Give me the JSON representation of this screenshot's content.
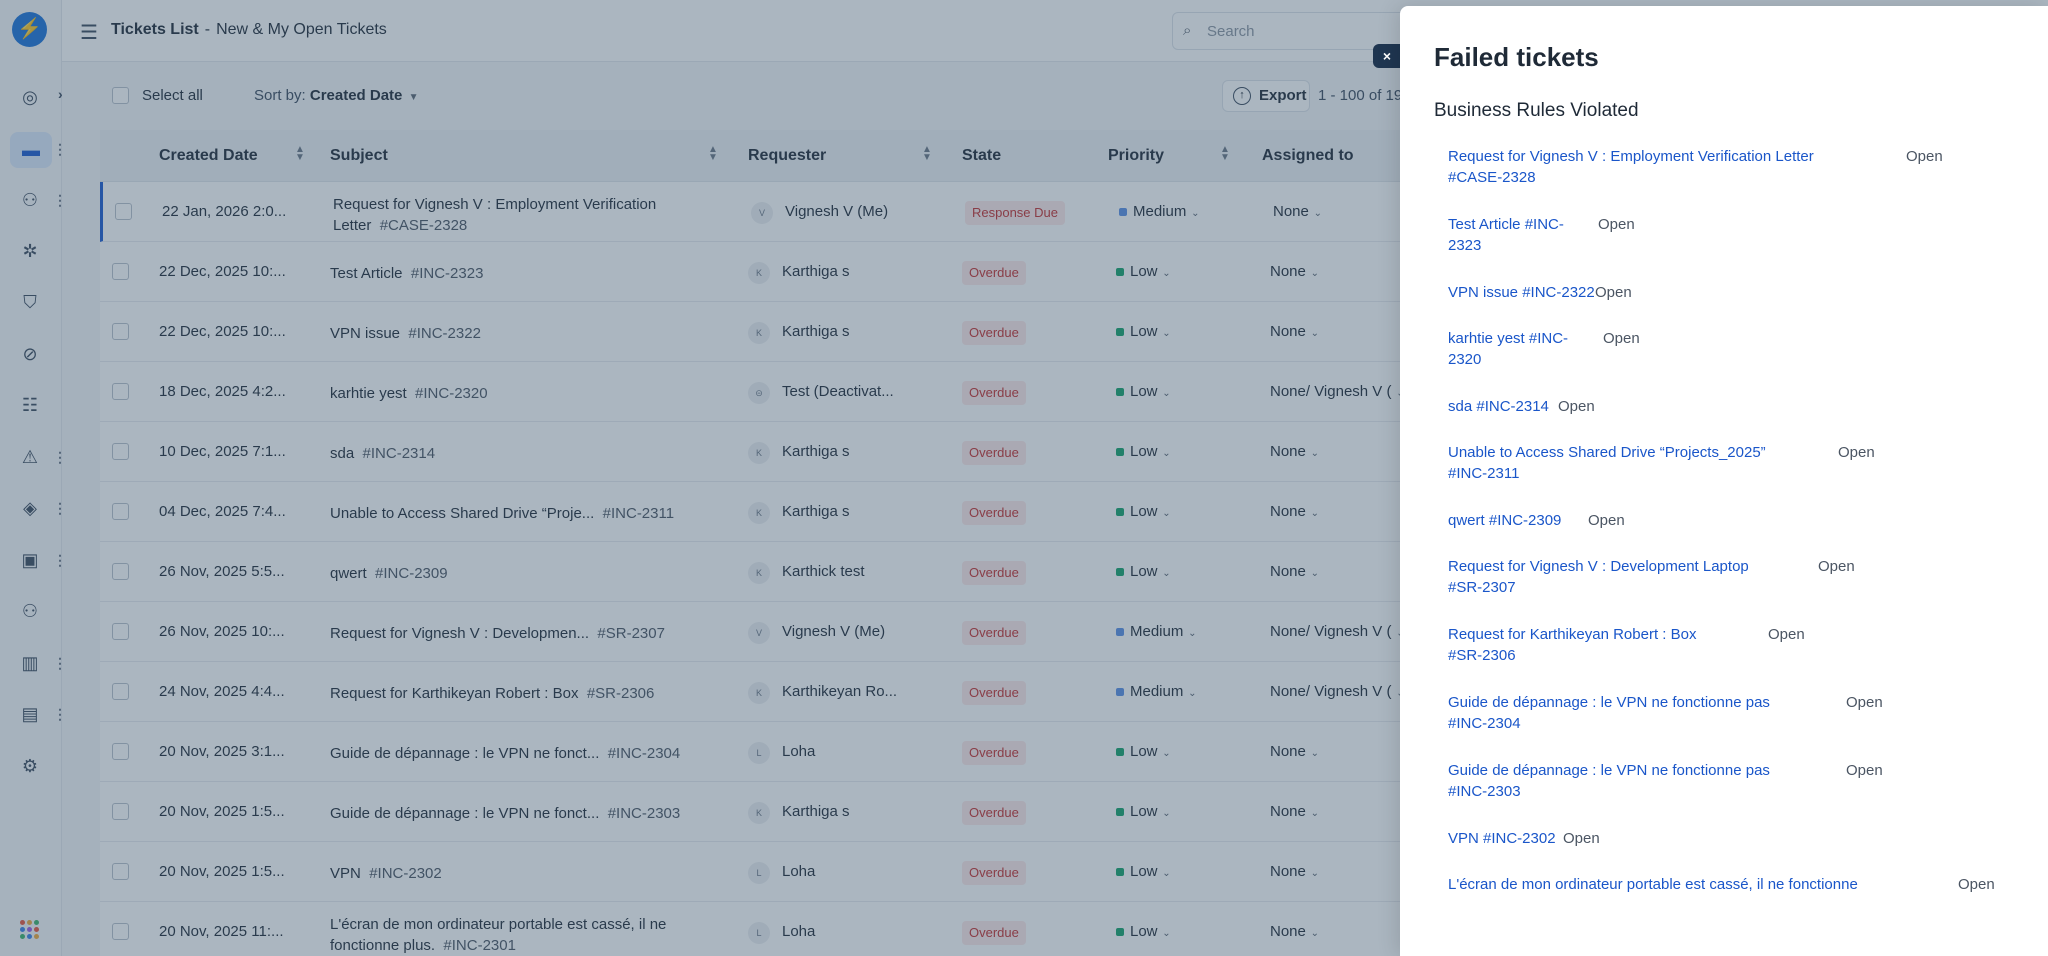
{
  "header": {
    "title": "Tickets List",
    "separator": "-",
    "view": "New & My Open Tickets",
    "search_placeholder": "Search"
  },
  "toolbar": {
    "select_all": "Select all",
    "sort_by_label": "Sort by:",
    "sort_by_value": "Created Date",
    "export_label": "Export",
    "range_text": "1 - 100 of 19"
  },
  "columns": {
    "created_date": "Created Date",
    "subject": "Subject",
    "requester": "Requester",
    "state": "State",
    "priority": "Priority",
    "assigned_to": "Assigned to"
  },
  "rows": [
    {
      "date": "22 Jan, 2026 2:0...",
      "subject_line1": "Request for Vignesh V : Employment Verification",
      "subject_line2": "Letter",
      "ticket_id": "#CASE-2328",
      "avatar": "V",
      "requester": "Vignesh V (Me)",
      "state": "Response Due",
      "priority": "Medium",
      "assigned": "None"
    },
    {
      "date": "22 Dec, 2025 10:...",
      "subject_line1": "Test Article",
      "subject_line2": "",
      "ticket_id": "#INC-2323",
      "avatar": "K",
      "requester": "Karthiga s",
      "state": "Overdue",
      "priority": "Low",
      "assigned": "None"
    },
    {
      "date": "22 Dec, 2025 10:...",
      "subject_line1": "VPN issue",
      "subject_line2": "",
      "ticket_id": "#INC-2322",
      "avatar": "K",
      "requester": "Karthiga s",
      "state": "Overdue",
      "priority": "Low",
      "assigned": "None"
    },
    {
      "date": "18 Dec, 2025 4:2...",
      "subject_line1": "karhtie yest",
      "subject_line2": "",
      "ticket_id": "#INC-2320",
      "avatar": "",
      "requester": "Test (Deactivat...",
      "state": "Overdue",
      "priority": "Low",
      "assigned": "None/ Vignesh V ("
    },
    {
      "date": "10 Dec, 2025 7:1...",
      "subject_line1": "sda",
      "subject_line2": "",
      "ticket_id": "#INC-2314",
      "avatar": "K",
      "requester": "Karthiga s",
      "state": "Overdue",
      "priority": "Low",
      "assigned": "None"
    },
    {
      "date": "04 Dec, 2025 7:4...",
      "subject_line1": "Unable to Access Shared Drive “Proje...",
      "subject_line2": "",
      "ticket_id": "#INC-2311",
      "avatar": "K",
      "requester": "Karthiga s",
      "state": "Overdue",
      "priority": "Low",
      "assigned": "None"
    },
    {
      "date": "26 Nov, 2025 5:5...",
      "subject_line1": "qwert",
      "subject_line2": "",
      "ticket_id": "#INC-2309",
      "avatar": "K",
      "requester": "Karthick test",
      "state": "Overdue",
      "priority": "Low",
      "assigned": "None"
    },
    {
      "date": "26 Nov, 2025 10:...",
      "subject_line1": "Request for Vignesh V : Developmen...",
      "subject_line2": "",
      "ticket_id": "#SR-2307",
      "avatar": "V",
      "requester": "Vignesh V (Me)",
      "state": "Overdue",
      "priority": "Medium",
      "assigned": "None/ Vignesh V ("
    },
    {
      "date": "24 Nov, 2025 4:4...",
      "subject_line1": "Request for Karthikeyan Robert : Box",
      "subject_line2": "",
      "ticket_id": "#SR-2306",
      "avatar": "K",
      "requester": "Karthikeyan Ro...",
      "state": "Overdue",
      "priority": "Medium",
      "assigned": "None/ Vignesh V ("
    },
    {
      "date": "20 Nov, 2025 3:1...",
      "subject_line1": "Guide de dépannage : le VPN ne fonct...",
      "subject_line2": "",
      "ticket_id": "#INC-2304",
      "avatar": "L",
      "requester": "Loha",
      "state": "Overdue",
      "priority": "Low",
      "assigned": "None"
    },
    {
      "date": "20 Nov, 2025 1:5...",
      "subject_line1": "Guide de dépannage : le VPN ne fonct...",
      "subject_line2": "",
      "ticket_id": "#INC-2303",
      "avatar": "K",
      "requester": "Karthiga s",
      "state": "Overdue",
      "priority": "Low",
      "assigned": "None"
    },
    {
      "date": "20 Nov, 2025 1:5...",
      "subject_line1": "VPN",
      "subject_line2": "",
      "ticket_id": "#INC-2302",
      "avatar": "L",
      "requester": "Loha",
      "state": "Overdue",
      "priority": "Low",
      "assigned": "None"
    },
    {
      "date": "20 Nov, 2025 11:...",
      "subject_line1": "L'écran de mon ordinateur portable est cassé, il ne",
      "subject_line2": "fonctionne plus.",
      "ticket_id": "#INC-2301",
      "avatar": "L",
      "requester": "Loha",
      "state": "Overdue",
      "priority": "Low",
      "assigned": "None"
    }
  ],
  "drawer": {
    "close_label": "×",
    "title": "Failed tickets",
    "subtitle": "Business Rules Violated",
    "items": [
      {
        "line1": "Request for Vignesh V : Employment Verification Letter",
        "line2": "#CASE-2328",
        "state": "Open"
      },
      {
        "line1": "Test Article #INC-",
        "line2": "2323",
        "state": "Open"
      },
      {
        "line1": "VPN issue #INC-2322",
        "line2": "",
        "state": "Open"
      },
      {
        "line1": "karhtie yest #INC-",
        "line2": "2320",
        "state": "Open"
      },
      {
        "line1": "sda #INC-2314",
        "line2": "",
        "state": "Open"
      },
      {
        "line1": "Unable to Access Shared Drive “Projects_2025”",
        "line2": "#INC-2311",
        "state": "Open"
      },
      {
        "line1": "qwert #INC-2309",
        "line2": "",
        "state": "Open"
      },
      {
        "line1": "Request for Vignesh V : Development Laptop",
        "line2": "#SR-2307",
        "state": "Open"
      },
      {
        "line1": "Request for Karthikeyan Robert : Box",
        "line2": "#SR-2306",
        "state": "Open"
      },
      {
        "line1": "Guide de dépannage : le VPN ne fonctionne pas",
        "line2": "#INC-2304",
        "state": "Open"
      },
      {
        "line1": "Guide de dépannage : le VPN ne fonctionne pas",
        "line2": "#INC-2303",
        "state": "Open"
      },
      {
        "line1": "VPN #INC-2302",
        "line2": "",
        "state": "Open"
      },
      {
        "line1": "L'écran de mon ordinateur portable est cassé, il ne fonctionne",
        "line2": "",
        "state": "Open"
      }
    ]
  },
  "colors": {
    "accent": "#1a5bd0",
    "link": "#1a56c9",
    "overdue_bg": "#fde8e8",
    "overdue_text": "#c53030",
    "priority_low": "#14a36b",
    "priority_medium": "#5b8fe6",
    "overlay": "#375069"
  },
  "icons": {
    "rail": [
      "dashboard-icon",
      "tickets-icon",
      "users-settings-icon",
      "bug-icon",
      "shield-icon",
      "changes-icon",
      "checklist-icon",
      "alert-icon",
      "layers-icon",
      "assets-icon",
      "team-icon",
      "knowledge-book-icon",
      "reports-icon",
      "settings-icon"
    ]
  }
}
